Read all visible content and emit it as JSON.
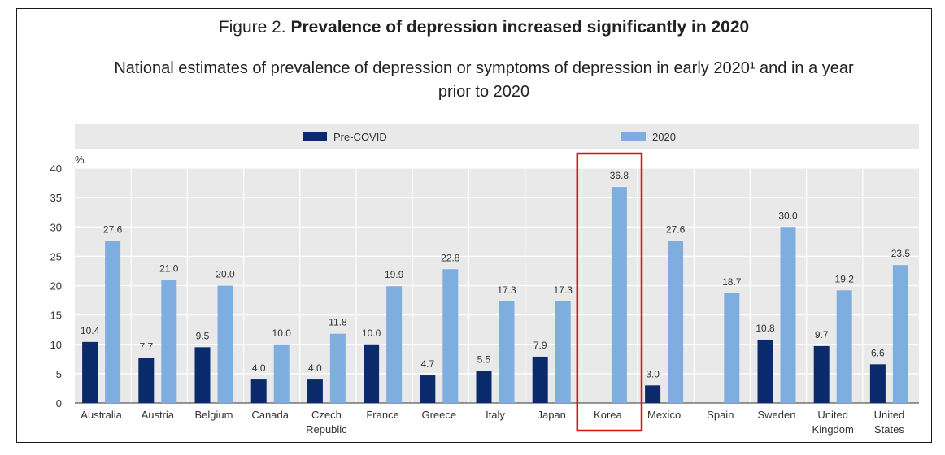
{
  "figure": {
    "prefix": "Figure 2.",
    "title": "Prevalence of depression increased significantly in 2020",
    "subtitle_line1": "National estimates of prevalence of depression or symptoms of depression in early 2020¹ and in a year",
    "subtitle_line2": "prior to 2020"
  },
  "chart_data": {
    "type": "bar",
    "title": "Prevalence of depression increased significantly in 2020",
    "ylabel": "%",
    "ylim": [
      0,
      40
    ],
    "yticks": [
      0,
      5,
      10,
      15,
      20,
      25,
      30,
      35,
      40
    ],
    "grid": true,
    "legend_position": "top",
    "categories": [
      [
        "Australia"
      ],
      [
        "Austria"
      ],
      [
        "Belgium"
      ],
      [
        "Canada"
      ],
      [
        "Czech",
        "Republic"
      ],
      [
        "France"
      ],
      [
        "Greece"
      ],
      [
        "Italy"
      ],
      [
        "Japan"
      ],
      [
        "Korea"
      ],
      [
        "Mexico"
      ],
      [
        "Spain"
      ],
      [
        "Sweden"
      ],
      [
        "United",
        "Kingdom"
      ],
      [
        "United",
        "States"
      ]
    ],
    "series": [
      {
        "name": "Pre-COVID",
        "color": "#0a2a6b",
        "values": [
          10.4,
          7.7,
          9.5,
          4.0,
          4.0,
          10.0,
          4.7,
          5.5,
          7.9,
          null,
          3.0,
          null,
          10.8,
          9.7,
          6.6
        ],
        "labels": [
          "10.4",
          "7.7",
          "9.5",
          "4.0",
          "4.0",
          "10.0",
          "4.7",
          "5.5",
          "7.9",
          "",
          "3.0",
          "",
          "10.8",
          "9.7",
          "6.6"
        ]
      },
      {
        "name": "2020",
        "color": "#7eaee0",
        "values": [
          27.6,
          21.0,
          20.0,
          10.0,
          11.8,
          19.9,
          22.8,
          17.3,
          17.3,
          36.8,
          27.6,
          18.7,
          30.0,
          19.2,
          23.5
        ],
        "labels": [
          "27.6",
          "21.0",
          "20.0",
          "10.0",
          "11.8",
          "19.9",
          "22.8",
          "17.3",
          "17.3",
          "36.8",
          "27.6",
          "18.7",
          "30.0",
          "19.2",
          "23.5"
        ]
      }
    ],
    "highlight_category": "Korea",
    "highlight_color": "#e01010"
  }
}
